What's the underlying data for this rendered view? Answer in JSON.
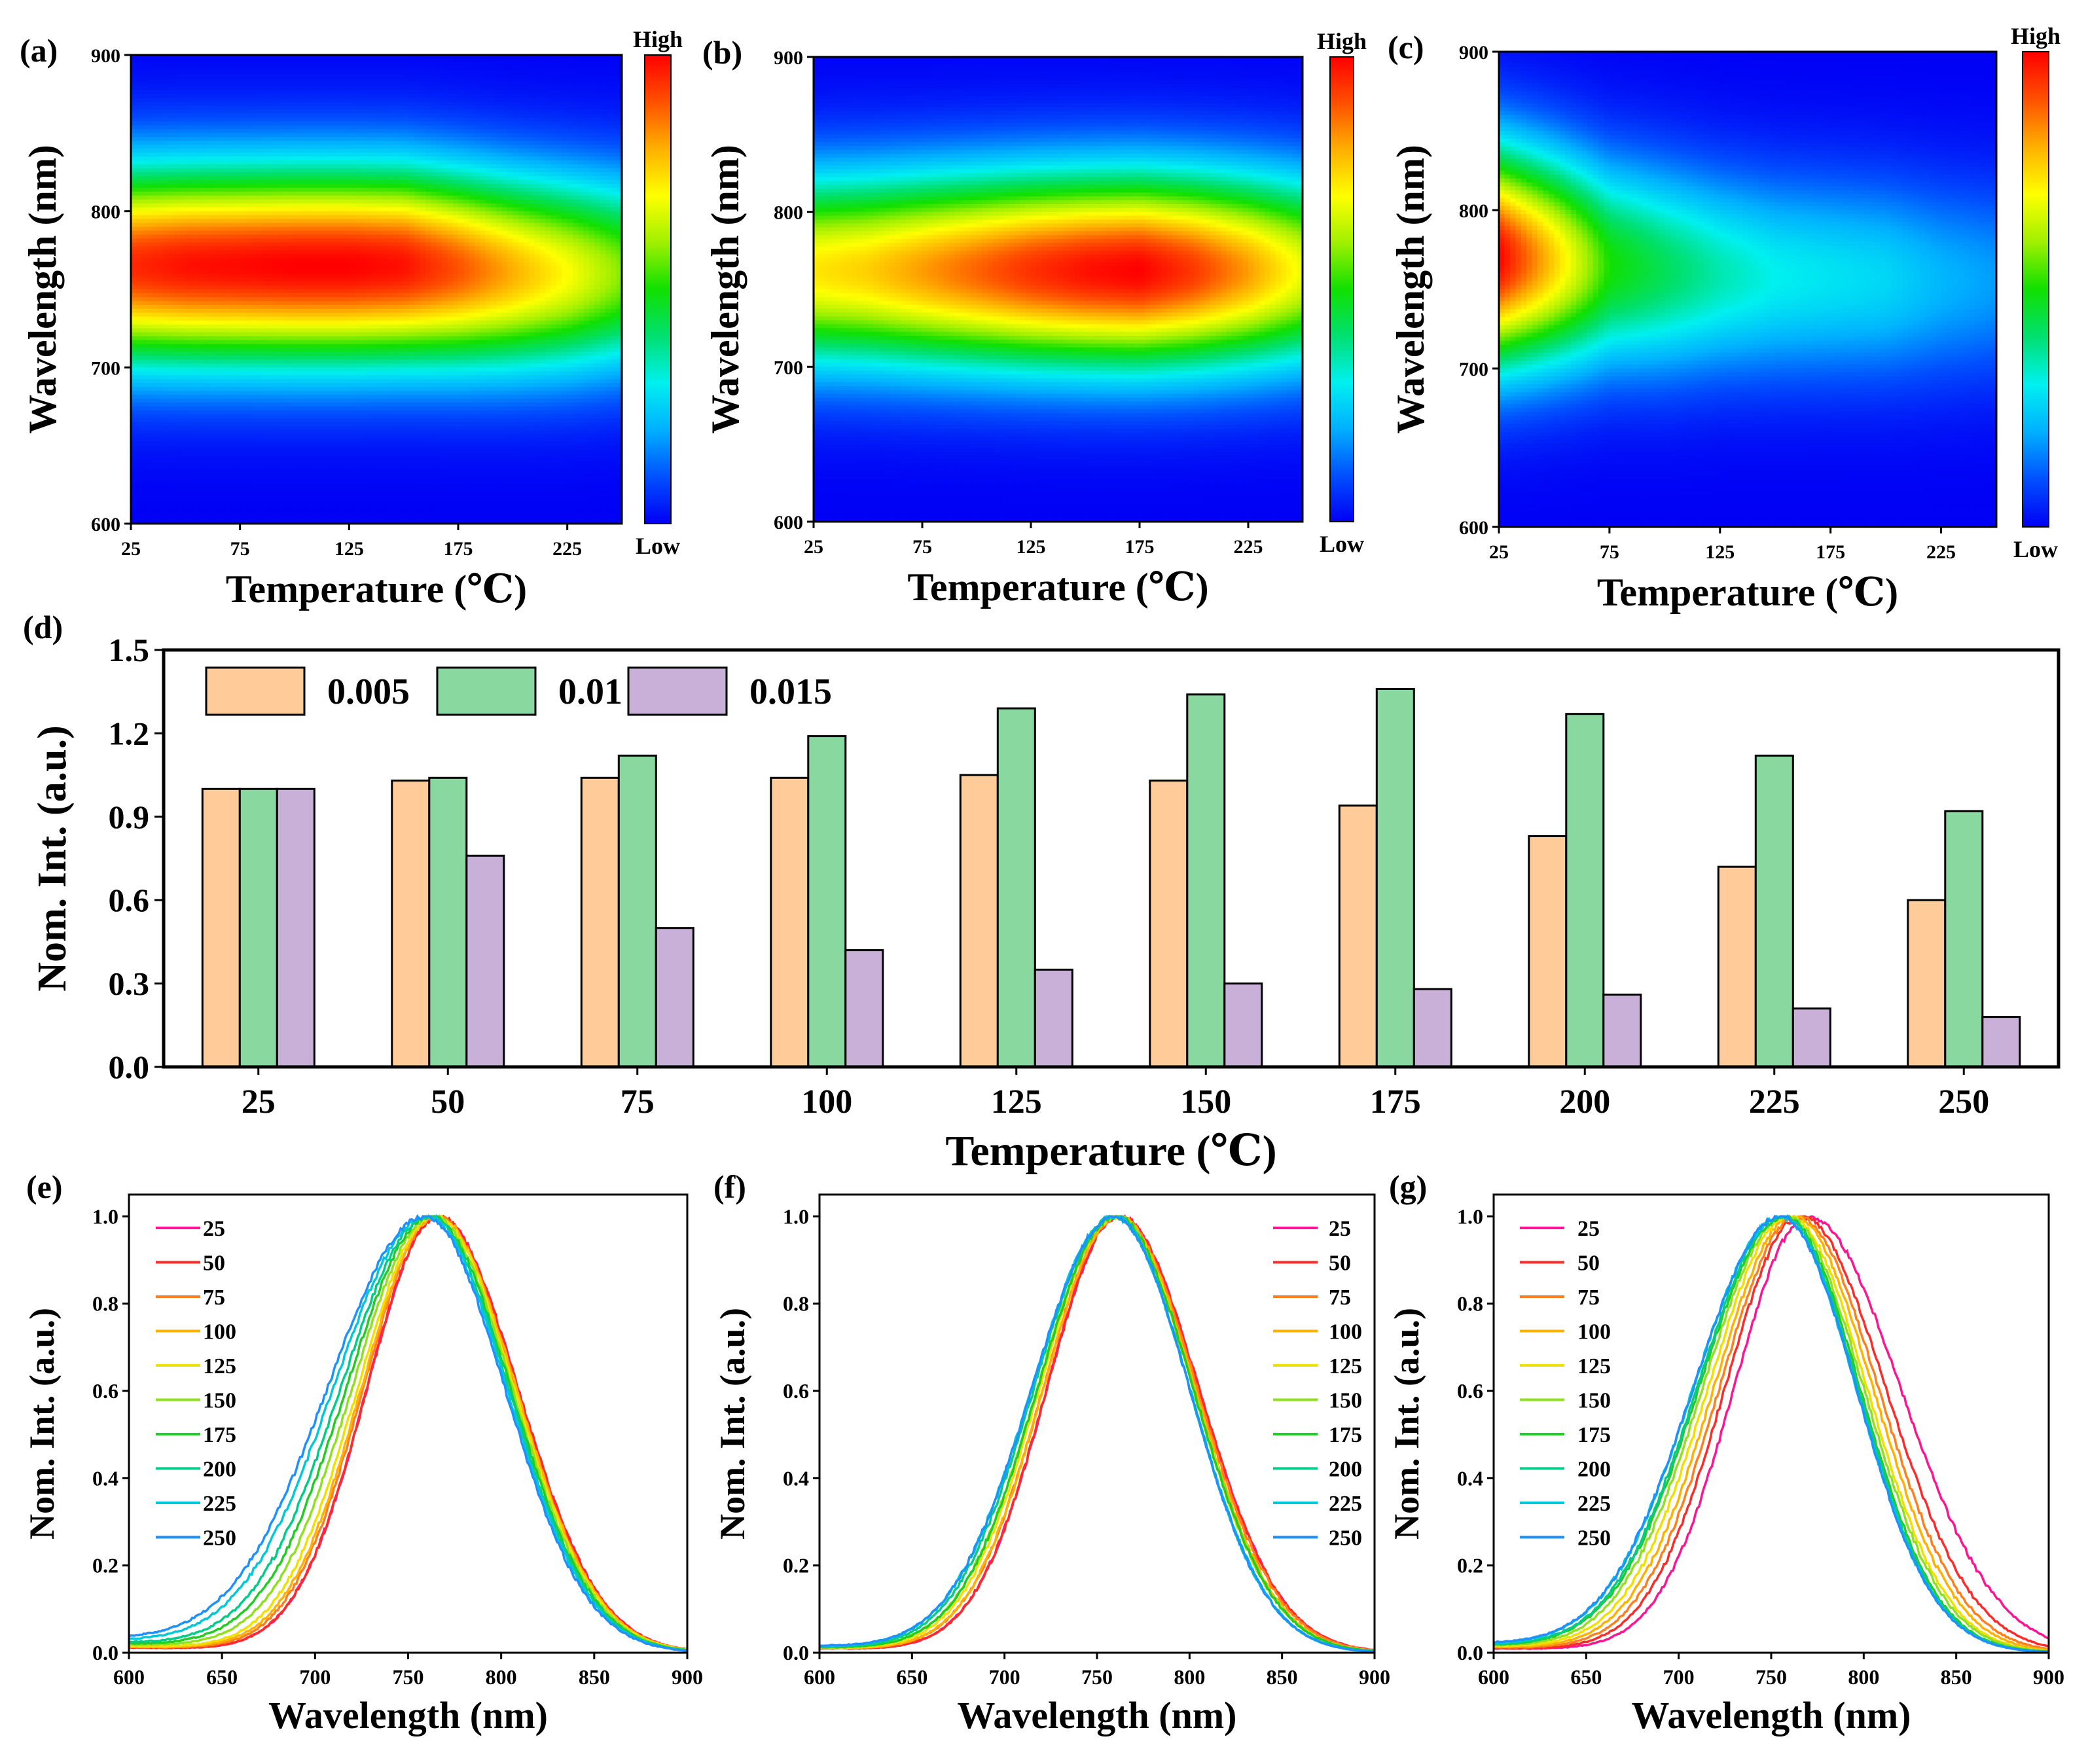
{
  "figure": {
    "colorbar_high": "High",
    "colorbar_low": "Low"
  },
  "palette": {
    "jet": [
      "#0000f5",
      "#0050ff",
      "#00b0ff",
      "#00f0f0",
      "#00e070",
      "#10e000",
      "#a0f000",
      "#ffff00",
      "#ffb000",
      "#ff5000",
      "#ff0000"
    ],
    "bar_0005": "#ffcc99",
    "bar_001": "#88d8a0",
    "bar_0015": "#c8b0d8",
    "series_25": "#ff1493",
    "series_50": "#ff2a2a",
    "series_75": "#ff7f1e",
    "series_100": "#ffb000",
    "series_125": "#f0e000",
    "series_150": "#90e020",
    "series_175": "#22cc22",
    "series_200": "#00cc88",
    "series_225": "#00c8d8",
    "series_250": "#1e90ff"
  },
  "chart_data": [
    {
      "id": "a",
      "panel_label": "(a)",
      "type": "heatmap",
      "xlabel": "Temperature (℃)",
      "ylabel": "Wavelength (nm)",
      "xlim": [
        25,
        250
      ],
      "ylim": [
        600,
        900
      ],
      "xticks": [
        "25",
        "75",
        "125",
        "175",
        "225"
      ],
      "yticks": [
        "600",
        "700",
        "800",
        "900"
      ],
      "temps": [
        25,
        50,
        75,
        100,
        125,
        150,
        175,
        200,
        225,
        250
      ],
      "peak_nm": [
        765,
        765,
        765,
        765,
        765,
        765,
        763,
        761,
        760,
        760
      ],
      "width_nm": [
        44,
        44,
        44,
        44,
        44,
        44,
        44,
        44,
        44,
        44
      ],
      "intensity": [
        0.95,
        0.98,
        0.99,
        1.0,
        1.0,
        0.98,
        0.9,
        0.8,
        0.7,
        0.58
      ]
    },
    {
      "id": "b",
      "panel_label": "(b)",
      "type": "heatmap",
      "xlabel": "Temperature (℃)",
      "ylabel": "Wavelength (nm)",
      "xlim": [
        25,
        250
      ],
      "ylim": [
        600,
        900
      ],
      "xticks": [
        "25",
        "75",
        "125",
        "175",
        "225"
      ],
      "yticks": [
        "600",
        "700",
        "800",
        "900"
      ],
      "temps": [
        25,
        50,
        75,
        100,
        125,
        150,
        175,
        200,
        225,
        250
      ],
      "peak_nm": [
        762,
        762,
        762,
        762,
        762,
        762,
        762,
        762,
        762,
        762
      ],
      "width_nm": [
        44,
        44,
        44,
        44,
        44,
        44,
        44,
        44,
        44,
        44
      ],
      "intensity": [
        0.73,
        0.76,
        0.82,
        0.88,
        0.94,
        0.98,
        1.0,
        0.93,
        0.82,
        0.68
      ]
    },
    {
      "id": "c",
      "panel_label": "(c)",
      "type": "heatmap",
      "xlabel": "Temperature (℃)",
      "ylabel": "Wavelength (nm)",
      "xlim": [
        25,
        250
      ],
      "ylim": [
        600,
        900
      ],
      "xticks": [
        "25",
        "75",
        "125",
        "175",
        "225"
      ],
      "yticks": [
        "600",
        "700",
        "800",
        "900"
      ],
      "temps": [
        25,
        50,
        75,
        100,
        125,
        150,
        175,
        200,
        225,
        250
      ],
      "peak_nm": [
        770,
        768,
        765,
        762,
        760,
        758,
        757,
        756,
        755,
        755
      ],
      "width_nm": [
        48,
        47,
        46,
        46,
        45,
        45,
        45,
        45,
        45,
        45
      ],
      "intensity": [
        1.0,
        0.76,
        0.5,
        0.42,
        0.35,
        0.3,
        0.28,
        0.26,
        0.21,
        0.18
      ]
    },
    {
      "id": "d",
      "panel_label": "(d)",
      "type": "bar",
      "xlabel": "Temperature (℃)",
      "ylabel": "Nom. Int. (a.u.)",
      "ylim": [
        0,
        1.5
      ],
      "yticks": [
        "0.0",
        "0.3",
        "0.6",
        "0.9",
        "1.2",
        "1.5"
      ],
      "categories": [
        "25",
        "50",
        "75",
        "100",
        "125",
        "150",
        "175",
        "200",
        "225",
        "250"
      ],
      "series": [
        {
          "name": "0.005",
          "values": [
            1.0,
            1.03,
            1.04,
            1.04,
            1.05,
            1.03,
            0.94,
            0.83,
            0.72,
            0.6
          ]
        },
        {
          "name": "0.01",
          "values": [
            1.0,
            1.04,
            1.12,
            1.19,
            1.29,
            1.34,
            1.36,
            1.27,
            1.12,
            0.92
          ]
        },
        {
          "name": "0.015",
          "values": [
            1.0,
            0.76,
            0.5,
            0.42,
            0.35,
            0.3,
            0.28,
            0.26,
            0.21,
            0.18
          ]
        }
      ],
      "legend_position": "top-left"
    },
    {
      "id": "e",
      "panel_label": "(e)",
      "type": "line",
      "xlabel": "Wavelength (nm)",
      "ylabel": "Nom. Int. (a.u.)",
      "xlim": [
        600,
        900
      ],
      "ylim": [
        0,
        1.05
      ],
      "xticks": [
        "600",
        "650",
        "700",
        "750",
        "800",
        "850",
        "900"
      ],
      "yticks": [
        "0.0",
        "0.2",
        "0.4",
        "0.6",
        "0.8",
        "1.0"
      ],
      "series_names": [
        "25",
        "50",
        "75",
        "100",
        "125",
        "150",
        "175",
        "200",
        "225",
        "250"
      ],
      "peak_nm": [
        766,
        766,
        765,
        765,
        764,
        763,
        762,
        761,
        760,
        759
      ],
      "sigma_left": [
        38,
        38,
        39,
        40,
        41,
        43,
        45,
        47,
        50,
        52
      ],
      "sigma_right": [
        43,
        43,
        43,
        43,
        43,
        43,
        43,
        43,
        43,
        43
      ],
      "baseline": [
        0.012,
        0.012,
        0.013,
        0.014,
        0.015,
        0.018,
        0.02,
        0.022,
        0.026,
        0.03
      ],
      "legend_position": "top-left"
    },
    {
      "id": "f",
      "panel_label": "(f)",
      "type": "line",
      "xlabel": "Wavelength (nm)",
      "ylabel": "Nom. Int. (a.u.)",
      "xlim": [
        600,
        900
      ],
      "ylim": [
        0,
        1.05
      ],
      "xticks": [
        "600",
        "650",
        "700",
        "750",
        "800",
        "850",
        "900"
      ],
      "yticks": [
        "0.0",
        "0.2",
        "0.4",
        "0.6",
        "0.8",
        "1.0"
      ],
      "series_names": [
        "25",
        "50",
        "75",
        "100",
        "125",
        "150",
        "175",
        "200",
        "225",
        "250"
      ],
      "peak_nm": [
        762,
        762,
        761,
        761,
        760,
        760,
        760,
        759,
        759,
        759
      ],
      "sigma_left": [
        39,
        39,
        40,
        40,
        41,
        42,
        42,
        43,
        44,
        44
      ],
      "sigma_right": [
        43,
        43,
        43,
        42,
        42,
        42,
        42,
        41,
        41,
        41
      ],
      "baseline": [
        0.01,
        0.01,
        0.01,
        0.011,
        0.011,
        0.012,
        0.012,
        0.013,
        0.014,
        0.015
      ],
      "legend_position": "top-right"
    },
    {
      "id": "g",
      "panel_label": "(g)",
      "type": "line",
      "xlabel": "Wavelength (nm)",
      "ylabel": "Nom. Int. (a.u.)",
      "xlim": [
        600,
        900
      ],
      "ylim": [
        0,
        1.05
      ],
      "xticks": [
        "600",
        "650",
        "700",
        "750",
        "800",
        "850",
        "900"
      ],
      "yticks": [
        "0.0",
        "0.2",
        "0.4",
        "0.6",
        "0.8",
        "1.0"
      ],
      "series_names": [
        "25",
        "50",
        "75",
        "100",
        "125",
        "150",
        "175",
        "200",
        "225",
        "250"
      ],
      "peak_nm": [
        770,
        766,
        764,
        762,
        760,
        758,
        757,
        756,
        755,
        755
      ],
      "sigma_left": [
        40,
        41,
        42,
        43,
        44,
        45,
        46,
        46,
        47,
        47
      ],
      "sigma_right": [
        50,
        46,
        44,
        43,
        42,
        42,
        41,
        41,
        41,
        41
      ],
      "baseline": [
        0.01,
        0.01,
        0.012,
        0.013,
        0.014,
        0.015,
        0.016,
        0.017,
        0.018,
        0.02
      ],
      "legend_position": "top-left"
    }
  ]
}
